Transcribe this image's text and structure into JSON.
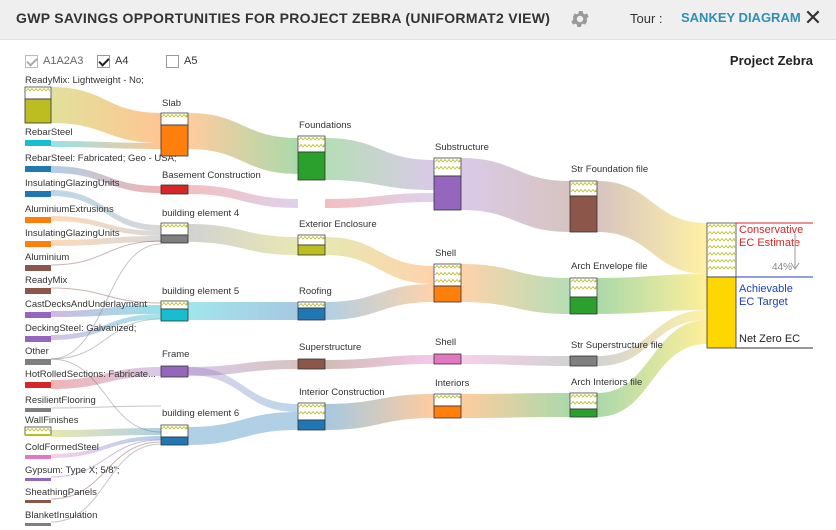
{
  "header": {
    "title": "GWP SAVINGS OPPORTUNITIES FOR PROJECT ZEBRA (UNIFORMAT2 VIEW)",
    "gear_icon": "gear-icon",
    "tour_label": "Tour :",
    "tour_link": "SANKEY DIAGRAM",
    "close_icon": "close-icon",
    "close_glyph": "✕"
  },
  "filters": [
    {
      "label": "A1A2A3",
      "checked": true,
      "dimmed": true
    },
    {
      "label": "A4",
      "checked": true,
      "dimmed": false
    },
    {
      "label": "A5",
      "checked": false,
      "dimmed": false
    }
  ],
  "project_name": "Project Zebra",
  "sankey": {
    "materials": [
      {
        "label": "ReadyMix: Lightweight - No;",
        "color": "#bcbd22"
      },
      {
        "label": "RebarSteel",
        "color": "#17becf"
      },
      {
        "label": "RebarSteel: Fabricated; Geo - USA;",
        "color": "#1f77b4"
      },
      {
        "label": "InsulatingGlazingUnits",
        "color": "#1f77b4"
      },
      {
        "label": "AluminiumExtrusions",
        "color": "#ff7f0e"
      },
      {
        "label": "InsulatingGlazingUnits",
        "color": "#ff7f0e"
      },
      {
        "label": "Aluminium",
        "color": "#8c564b"
      },
      {
        "label": "ReadyMix",
        "color": "#8c564b"
      },
      {
        "label": "CastDecksAndUnderlayment",
        "color": "#9467bd"
      },
      {
        "label": "DeckingSteel: Galvanized;",
        "color": "#9467bd"
      },
      {
        "label": "Other",
        "color": "#7f7f7f"
      },
      {
        "label": "HotRolledSections: Fabricate...",
        "color": "#d62728"
      },
      {
        "label": "ResilientFlooring",
        "color": "#7f7f7f"
      },
      {
        "label": "WallFinishes",
        "color": "#bcbd22"
      },
      {
        "label": "ColdFormedSteel",
        "color": "#e377c2"
      },
      {
        "label": "Gypsum: Type X; 5/8\";",
        "color": "#9467bd"
      },
      {
        "label": "SheathingPanels",
        "color": "#8c564b"
      },
      {
        "label": "BlanketInsulation",
        "color": "#7f7f7f"
      }
    ],
    "elements": [
      {
        "label": "Slab",
        "color": "#ff7f0e"
      },
      {
        "label": "Basement Construction",
        "color": "#d62728"
      },
      {
        "label": "building element 4",
        "color": "#7f7f7f"
      },
      {
        "label": "building element 5",
        "color": "#17becf"
      },
      {
        "label": "Frame",
        "color": "#9467bd"
      },
      {
        "label": "building element 6",
        "color": "#1f77b4"
      }
    ],
    "subsystems": [
      {
        "label": "Foundations",
        "color": "#2ca02c"
      },
      {
        "label": "Exterior Enclosure",
        "color": "#bcbd22"
      },
      {
        "label": "Roofing",
        "color": "#1f77b4"
      },
      {
        "label": "Superstructure",
        "color": "#8c564b"
      },
      {
        "label": "Interior Construction",
        "color": "#1f77b4"
      }
    ],
    "systems": [
      {
        "label": "Substructure",
        "color": "#9467bd"
      },
      {
        "label": "Shell",
        "color": "#ff7f0e"
      },
      {
        "label": "Shell",
        "color": "#e377c2"
      },
      {
        "label": "Interiors",
        "color": "#ff7f0e"
      }
    ],
    "files": [
      {
        "label": "Str Foundation file",
        "color": "#8c564b"
      },
      {
        "label": "Arch Envelope file",
        "color": "#2ca02c"
      },
      {
        "label": "Str Superstructure file",
        "color": "#7f7f7f"
      },
      {
        "label": "Arch Interiors file",
        "color": "#2ca02c"
      }
    ],
    "summary": {
      "conservative_label": "Conservative EC Estimate",
      "achievable_label": "Achievable EC Target",
      "netzero_label": "Net Zero EC",
      "savings_percent": "44%",
      "conservative_color": "#d62728",
      "achievable_color": "#1f3fbf",
      "bar_color": "#ffd700"
    }
  }
}
